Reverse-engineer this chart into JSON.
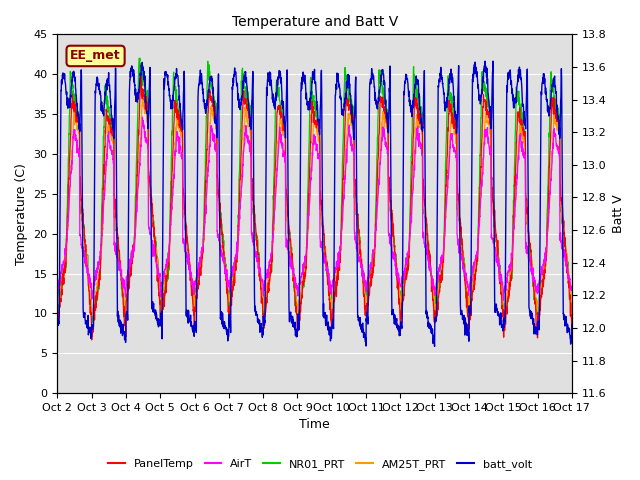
{
  "title": "Temperature and Batt V",
  "xlabel": "Time",
  "ylabel_left": "Temperature (C)",
  "ylabel_right": "Batt V",
  "annotation": "EE_met",
  "ylim_left": [
    0,
    45
  ],
  "ylim_right": [
    11.6,
    13.8
  ],
  "yticks_left": [
    0,
    5,
    10,
    15,
    20,
    25,
    30,
    35,
    40,
    45
  ],
  "yticks_right": [
    11.6,
    11.8,
    12.0,
    12.2,
    12.4,
    12.6,
    12.8,
    13.0,
    13.2,
    13.4,
    13.6,
    13.8
  ],
  "xtick_labels": [
    "Oct 2",
    "Oct 3",
    "Oct 4",
    "Oct 5",
    "Oct 6",
    "Oct 7",
    "Oct 8",
    "Oct 9",
    "Oct 10",
    "Oct 11",
    "Oct 12",
    "Oct 13",
    "Oct 14",
    "Oct 15",
    "Oct 16",
    "Oct 17"
  ],
  "legend": [
    {
      "label": "PanelTemp",
      "color": "#ff0000"
    },
    {
      "label": "AirT",
      "color": "#ff00ff"
    },
    {
      "label": "NR01_PRT",
      "color": "#00cc00"
    },
    {
      "label": "AM25T_PRT",
      "color": "#ff9900"
    },
    {
      "label": "batt_volt",
      "color": "#0000cc"
    }
  ],
  "background_color": "#e0e0e0",
  "grid_color": "#ffffff",
  "num_days": 15,
  "pts_per_day": 144
}
